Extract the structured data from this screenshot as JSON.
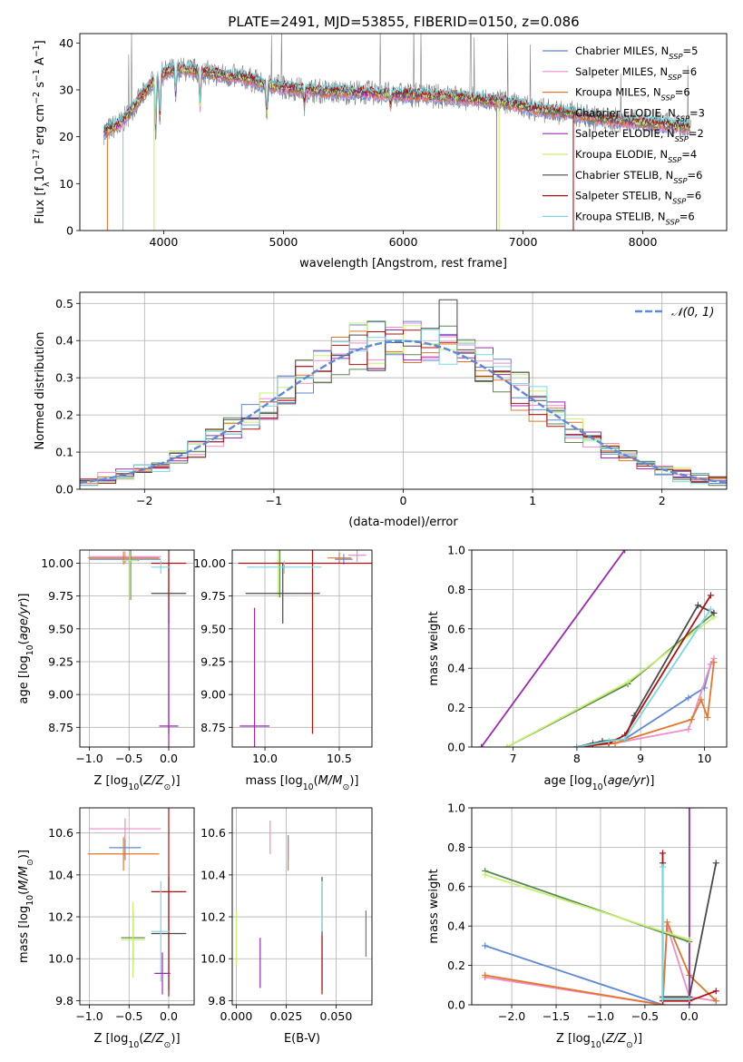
{
  "figure_title": "PLATE=2491, MJD=53855, FIBERID=0150, z=0.086",
  "colors": {
    "Chabrier MILES": "#5f88d8",
    "Salpeter MILES": "#f08cc8",
    "Kroupa MILES": "#e2762a",
    "Chabrier ELODIE": "#5a8a52",
    "Salpeter ELODIE": "#9a2ab0",
    "Kroupa ELODIE": "#c8f070",
    "Chabrier STELIB": "#4a4a4a",
    "Salpeter STELIB": "#b01010",
    "Kroupa STELIB": "#78d8e0"
  },
  "chart_data": [
    {
      "id": "spectrum",
      "type": "line",
      "title": "PLATE=2491, MJD=53855, FIBERID=0150, z=0.086",
      "xlabel": "wavelength [Angstrom, rest frame]",
      "ylabel": "Flux [f_λ10^-17 erg cm^-2 s^-1 A^-1]",
      "xlim": [
        3300,
        8700
      ],
      "ylim": [
        0,
        42
      ],
      "xticks": [
        4000,
        5000,
        6000,
        7000,
        8000
      ],
      "yticks": [
        0,
        10,
        20,
        30,
        40
      ],
      "legend_position": "top-right",
      "legend": [
        {
          "label": "Chabrier MILES, N",
          "sub": "SSP",
          "tail": "=5",
          "key": "Chabrier MILES"
        },
        {
          "label": "Salpeter MILES, N",
          "sub": "SSP",
          "tail": "=6",
          "key": "Salpeter MILES"
        },
        {
          "label": "Kroupa MILES, N",
          "sub": "SSP",
          "tail": "=6",
          "key": "Kroupa MILES"
        },
        {
          "label": "Chabrier ELODIE, N",
          "sub": "SSP",
          "tail": "=3",
          "key": "Chabrier ELODIE"
        },
        {
          "label": "Salpeter ELODIE, N",
          "sub": "SSP",
          "tail": "=2",
          "key": "Salpeter ELODIE"
        },
        {
          "label": "Kroupa ELODIE, N",
          "sub": "SSP",
          "tail": "=4",
          "key": "Kroupa ELODIE"
        },
        {
          "label": "Chabrier STELIB, N",
          "sub": "SSP",
          "tail": "=6",
          "key": "Chabrier STELIB"
        },
        {
          "label": "Salpeter STELIB, N",
          "sub": "SSP",
          "tail": "=6",
          "key": "Salpeter STELIB"
        },
        {
          "label": "Kroupa STELIB, N",
          "sub": "SSP",
          "tail": "=6",
          "key": "Kroupa STELIB"
        }
      ],
      "continuum": [
        [
          3500,
          21
        ],
        [
          3650,
          23
        ],
        [
          3800,
          28
        ],
        [
          3950,
          33
        ],
        [
          4100,
          34.5
        ],
        [
          4300,
          34
        ],
        [
          4500,
          33
        ],
        [
          4700,
          32.5
        ],
        [
          4850,
          31
        ],
        [
          5000,
          30.5
        ],
        [
          5200,
          30
        ],
        [
          5400,
          29.5
        ],
        [
          5600,
          29.5
        ],
        [
          6000,
          29
        ],
        [
          6400,
          28.5
        ],
        [
          6600,
          28
        ],
        [
          6800,
          27.5
        ],
        [
          7000,
          26.5
        ],
        [
          7200,
          25.5
        ],
        [
          7400,
          25
        ],
        [
          7600,
          24
        ],
        [
          7800,
          23.5
        ],
        [
          8000,
          23
        ],
        [
          8200,
          22.5
        ],
        [
          8400,
          22
        ]
      ],
      "absorption_dips": [
        [
          3934,
          12
        ],
        [
          3968,
          10
        ],
        [
          4101,
          6
        ],
        [
          4304,
          8
        ],
        [
          4861,
          7
        ],
        [
          5175,
          3
        ],
        [
          5893,
          3
        ]
      ],
      "model_drops": [
        {
          "x": 3530,
          "series": "Kroupa MILES"
        },
        {
          "x": 3660,
          "series": "Kroupa STELIB"
        },
        {
          "x": 3920,
          "series": "Kroupa ELODIE"
        },
        {
          "x": 6780,
          "series": "Kroupa MILES"
        },
        {
          "x": 6800,
          "series": "Kroupa ELODIE"
        },
        {
          "x": 7420,
          "series": "Salpeter STELIB"
        }
      ]
    },
    {
      "id": "residuals",
      "type": "histogram",
      "xlabel": "(data-model)/error",
      "ylabel": "Normed distribution",
      "xlim": [
        -2.5,
        2.5
      ],
      "ylim": [
        0,
        0.53
      ],
      "xticks": [
        -2,
        -1,
        0,
        1,
        2
      ],
      "yticks": [
        0.0,
        0.1,
        0.2,
        0.3,
        0.4,
        0.5
      ],
      "legend_position": "top-right",
      "gaussian_label": "𝒩(0, 1)",
      "bin_edges_range": [
        -2.5,
        2.5
      ],
      "bins": 36,
      "reference": "standard normal N(0,1)",
      "highlight_bin": {
        "x": 0.35,
        "value": 0.51,
        "series": "Chabrier STELIB"
      }
    },
    {
      "id": "age-vs-Z",
      "type": "errorbar",
      "xlabel": "Z [log10(Z/Z⊙)]",
      "ylabel": "age  [log10(age/yr)]",
      "xlim": [
        -1.12,
        0.32
      ],
      "ylim": [
        8.6,
        10.1
      ],
      "xticks": [
        -1.0,
        -0.5,
        0.0
      ],
      "yticks": [
        8.75,
        9.0,
        9.25,
        9.5,
        9.75,
        10.0
      ],
      "points": [
        {
          "series": "Chabrier MILES",
          "x": -0.55,
          "y": 10.03,
          "xerr": 0.45,
          "yerr": 0.03
        },
        {
          "series": "Salpeter MILES",
          "x": -0.55,
          "y": 10.05,
          "xerr": 0.45,
          "yerr": 0.04
        },
        {
          "series": "Kroupa MILES",
          "x": -0.57,
          "y": 10.04,
          "xerr": 0.45,
          "yerr": 0.05
        },
        {
          "series": "Chabrier ELODIE",
          "x": -0.48,
          "y": 10.02,
          "xerr": 0.1,
          "yerr": 0.3
        },
        {
          "series": "Kroupa ELODIE",
          "x": -0.49,
          "y": 10.02,
          "xerr": 0.1,
          "yerr": 0.3
        },
        {
          "series": "Chabrier STELIB",
          "x": 0.0,
          "y": 9.77,
          "xerr": 0.22,
          "yerr": 0.23
        },
        {
          "series": "Salpeter STELIB",
          "x": 0.0,
          "y": 10.0,
          "xerr": 0.22,
          "yerr": 1.3
        },
        {
          "series": "Kroupa STELIB",
          "x": -0.1,
          "y": 9.97,
          "xerr": 0.12,
          "yerr": 0.05
        },
        {
          "series": "Salpeter ELODIE",
          "x": 0.0,
          "y": 8.76,
          "xerr": 0.12,
          "yerr": 0.9
        }
      ]
    },
    {
      "id": "age-vs-mass",
      "type": "errorbar",
      "xlabel": "mass [log10(M/M⊙)]",
      "ylabel": "",
      "xlim": [
        9.78,
        10.72
      ],
      "ylim": [
        8.6,
        10.1
      ],
      "xticks": [
        10.0,
        10.5
      ],
      "yticks": [
        8.75,
        9.0,
        9.25,
        9.5,
        9.75,
        10.0
      ],
      "points": [
        {
          "series": "Chabrier MILES",
          "x": 10.53,
          "y": 10.03,
          "xerr": 0.06,
          "yerr": 0.04
        },
        {
          "series": "Salpeter MILES",
          "x": 10.62,
          "y": 10.06,
          "xerr": 0.06,
          "yerr": 0.05
        },
        {
          "series": "Kroupa MILES",
          "x": 10.5,
          "y": 10.04,
          "xerr": 0.08,
          "yerr": 0.04
        },
        {
          "series": "Chabrier ELODIE",
          "x": 10.1,
          "y": 10.0,
          "xerr": 0.03,
          "yerr": 0.26
        },
        {
          "series": "Kroupa ELODIE",
          "x": 10.09,
          "y": 10.0,
          "xerr": 0.03,
          "yerr": 0.26
        },
        {
          "series": "Chabrier STELIB",
          "x": 10.12,
          "y": 9.77,
          "xerr": 0.25,
          "yerr": 0.23
        },
        {
          "series": "Salpeter STELIB",
          "x": 10.32,
          "y": 10.0,
          "xerr": 0.5,
          "yerr": 1.3
        },
        {
          "series": "Kroupa STELIB",
          "x": 10.13,
          "y": 9.97,
          "xerr": 0.25,
          "yerr": 0.05
        },
        {
          "series": "Salpeter ELODIE",
          "x": 9.93,
          "y": 8.76,
          "xerr": 0.1,
          "yerr": 0.9
        }
      ]
    },
    {
      "id": "weight-vs-age",
      "type": "line",
      "xlabel": "age  [log10(age/yr)]",
      "ylabel": "mass weight",
      "xlim": [
        6.35,
        10.35
      ],
      "ylim": [
        0,
        1
      ],
      "xticks": [
        7,
        8,
        9,
        10
      ],
      "yticks": [
        0.0,
        0.2,
        0.4,
        0.6,
        0.8,
        1.0
      ],
      "series": [
        {
          "name": "Chabrier MILES",
          "x": [
            8.0,
            8.25,
            8.75,
            9.75,
            10.0,
            10.1
          ],
          "y": [
            0.0,
            0.02,
            0.04,
            0.25,
            0.3,
            0.42
          ]
        },
        {
          "name": "Salpeter MILES",
          "x": [
            8.0,
            8.6,
            9.75,
            10.1,
            10.15
          ],
          "y": [
            0.0,
            0.02,
            0.09,
            0.42,
            0.45
          ]
        },
        {
          "name": "Kroupa MILES",
          "x": [
            8.0,
            8.6,
            9.8,
            9.95,
            10.05,
            10.15
          ],
          "y": [
            0.0,
            0.02,
            0.14,
            0.24,
            0.15,
            0.43
          ]
        },
        {
          "name": "Chabrier ELODIE",
          "x": [
            6.9,
            8.8,
            10.15
          ],
          "y": [
            0.0,
            0.32,
            0.68
          ]
        },
        {
          "name": "Salpeter ELODIE",
          "x": [
            6.5,
            8.75
          ],
          "y": [
            0.0,
            1.0
          ]
        },
        {
          "name": "Kroupa ELODIE",
          "x": [
            6.9,
            8.8,
            10.15
          ],
          "y": [
            0.0,
            0.33,
            0.66
          ]
        },
        {
          "name": "Chabrier STELIB",
          "x": [
            8.0,
            8.4,
            8.75,
            8.9,
            9.9,
            10.15
          ],
          "y": [
            0.0,
            0.03,
            0.04,
            0.16,
            0.72,
            0.68
          ]
        },
        {
          "name": "Salpeter STELIB",
          "x": [
            8.0,
            8.25,
            8.5,
            8.75,
            10.1
          ],
          "y": [
            0.0,
            0.01,
            0.02,
            0.06,
            0.77
          ]
        },
        {
          "name": "Kroupa STELIB",
          "x": [
            8.0,
            8.5,
            8.75,
            10.1
          ],
          "y": [
            0.0,
            0.03,
            0.04,
            0.7
          ]
        }
      ]
    },
    {
      "id": "mass-vs-Z",
      "type": "errorbar",
      "xlabel": "Z [log10(Z/Z⊙)]",
      "ylabel": "mass [log10(M/M⊙)]",
      "xlim": [
        -1.12,
        0.32
      ],
      "ylim": [
        9.78,
        10.72
      ],
      "xticks": [
        -1.0,
        -0.5,
        0.0
      ],
      "yticks": [
        9.8,
        10.0,
        10.2,
        10.4,
        10.6
      ],
      "points": [
        {
          "series": "Chabrier MILES",
          "x": -0.55,
          "y": 10.53,
          "xerr": 0.2,
          "yerr": 0.06
        },
        {
          "series": "Salpeter MILES",
          "x": -0.55,
          "y": 10.62,
          "xerr": 0.45,
          "yerr": 0.05
        },
        {
          "series": "Kroupa MILES",
          "x": -0.57,
          "y": 10.5,
          "xerr": 0.45,
          "yerr": 0.08
        },
        {
          "series": "Chabrier ELODIE",
          "x": -0.45,
          "y": 10.1,
          "xerr": 0.15,
          "yerr": 0.13
        },
        {
          "series": "Kroupa ELODIE",
          "x": -0.45,
          "y": 10.09,
          "xerr": 0.15,
          "yerr": 0.18
        },
        {
          "series": "Chabrier STELIB",
          "x": 0.0,
          "y": 10.12,
          "xerr": 0.22,
          "yerr": 0.27
        },
        {
          "series": "Salpeter STELIB",
          "x": 0.0,
          "y": 10.32,
          "xerr": 0.22,
          "yerr": 0.5
        },
        {
          "series": "Kroupa STELIB",
          "x": -0.1,
          "y": 10.13,
          "xerr": 0.12,
          "yerr": 0.24
        },
        {
          "series": "Salpeter ELODIE",
          "x": -0.08,
          "y": 9.93,
          "xerr": 0.1,
          "yerr": 0.1
        }
      ]
    },
    {
      "id": "mass-vs-ebv",
      "type": "errorbar",
      "xlabel": "E(B-V)",
      "ylabel": "",
      "xlim": [
        -0.002,
        0.068
      ],
      "ylim": [
        9.78,
        10.72
      ],
      "xticks": [
        0.0,
        0.025,
        0.05
      ],
      "xticklabels": [
        "0.000",
        "0.025",
        "0.050"
      ],
      "yticks": [
        9.8,
        10.0,
        10.2,
        10.4,
        10.6
      ],
      "points": [
        {
          "series": "Chabrier MILES",
          "x": 0.026,
          "y": 10.53,
          "xerr": 0.0,
          "yerr": 0.06
        },
        {
          "series": "Salpeter MILES",
          "x": 0.017,
          "y": 10.58,
          "xerr": 0.0,
          "yerr": 0.08
        },
        {
          "series": "Kroupa MILES",
          "x": 0.026,
          "y": 10.5,
          "xerr": 0.0,
          "yerr": 0.08
        },
        {
          "series": "Chabrier ELODIE",
          "x": 0.065,
          "y": 10.12,
          "xerr": 0.0,
          "yerr": 0.11
        },
        {
          "series": "Kroupa ELODIE",
          "x": 0.0,
          "y": 10.1,
          "xerr": 0.0,
          "yerr": 0.13
        },
        {
          "series": "Chabrier STELIB",
          "x": 0.043,
          "y": 10.12,
          "xerr": 0.0,
          "yerr": 0.27
        },
        {
          "series": "Salpeter STELIB",
          "x": 0.043,
          "y": 9.97,
          "xerr": 0.0,
          "yerr": 0.14
        },
        {
          "series": "Kroupa STELIB",
          "x": 0.043,
          "y": 10.25,
          "xerr": 0.0,
          "yerr": 0.12
        },
        {
          "series": "Salpeter ELODIE",
          "x": 0.012,
          "y": 9.98,
          "xerr": 0.0,
          "yerr": 0.12
        }
      ]
    },
    {
      "id": "weight-vs-Z",
      "type": "line",
      "xlabel": "Z [log10(Z/Z⊙)]",
      "ylabel": "mass weight",
      "xlim": [
        -2.45,
        0.42
      ],
      "ylim": [
        0,
        1
      ],
      "xticks": [
        -2.0,
        -1.5,
        -1.0,
        -0.5,
        0.0
      ],
      "xticklabels": [
        "−2.0",
        "−1.5",
        "−1.0",
        "−0.5",
        "0.0"
      ],
      "yticks": [
        0.0,
        0.2,
        0.4,
        0.6,
        0.8,
        1.0
      ],
      "series": [
        {
          "name": "Chabrier MILES",
          "x": [
            -2.3,
            -0.3
          ],
          "y": [
            0.3,
            0.0
          ]
        },
        {
          "name": "Salpeter MILES",
          "x": [
            -2.3,
            -0.3,
            -0.25,
            0.0,
            0.3
          ],
          "y": [
            0.14,
            0.0,
            0.4,
            0.04,
            0.02
          ]
        },
        {
          "name": "Kroupa MILES",
          "x": [
            -2.3,
            -0.3,
            -0.25,
            0.0,
            0.3
          ],
          "y": [
            0.15,
            0.0,
            0.42,
            0.15,
            0.02
          ]
        },
        {
          "name": "Chabrier ELODIE",
          "x": [
            -2.3,
            0.0
          ],
          "y": [
            0.68,
            0.32
          ]
        },
        {
          "name": "Salpeter ELODIE",
          "x": [
            0.0,
            0.0
          ],
          "y": [
            0.0,
            1.0
          ]
        },
        {
          "name": "Kroupa ELODIE",
          "x": [
            -2.3,
            0.0
          ],
          "y": [
            0.66,
            0.33
          ]
        },
        {
          "name": "Chabrier STELIB",
          "x": [
            -0.3,
            -0.3,
            0.0,
            0.3
          ],
          "y": [
            0.72,
            0.04,
            0.04,
            0.72
          ]
        },
        {
          "name": "Salpeter STELIB",
          "x": [
            -0.3,
            -0.3,
            0.0,
            0.3
          ],
          "y": [
            0.77,
            0.02,
            0.02,
            0.07
          ]
        },
        {
          "name": "Kroupa STELIB",
          "x": [
            -0.3,
            -0.3,
            0.0
          ],
          "y": [
            0.7,
            0.03,
            0.03
          ]
        }
      ]
    }
  ]
}
